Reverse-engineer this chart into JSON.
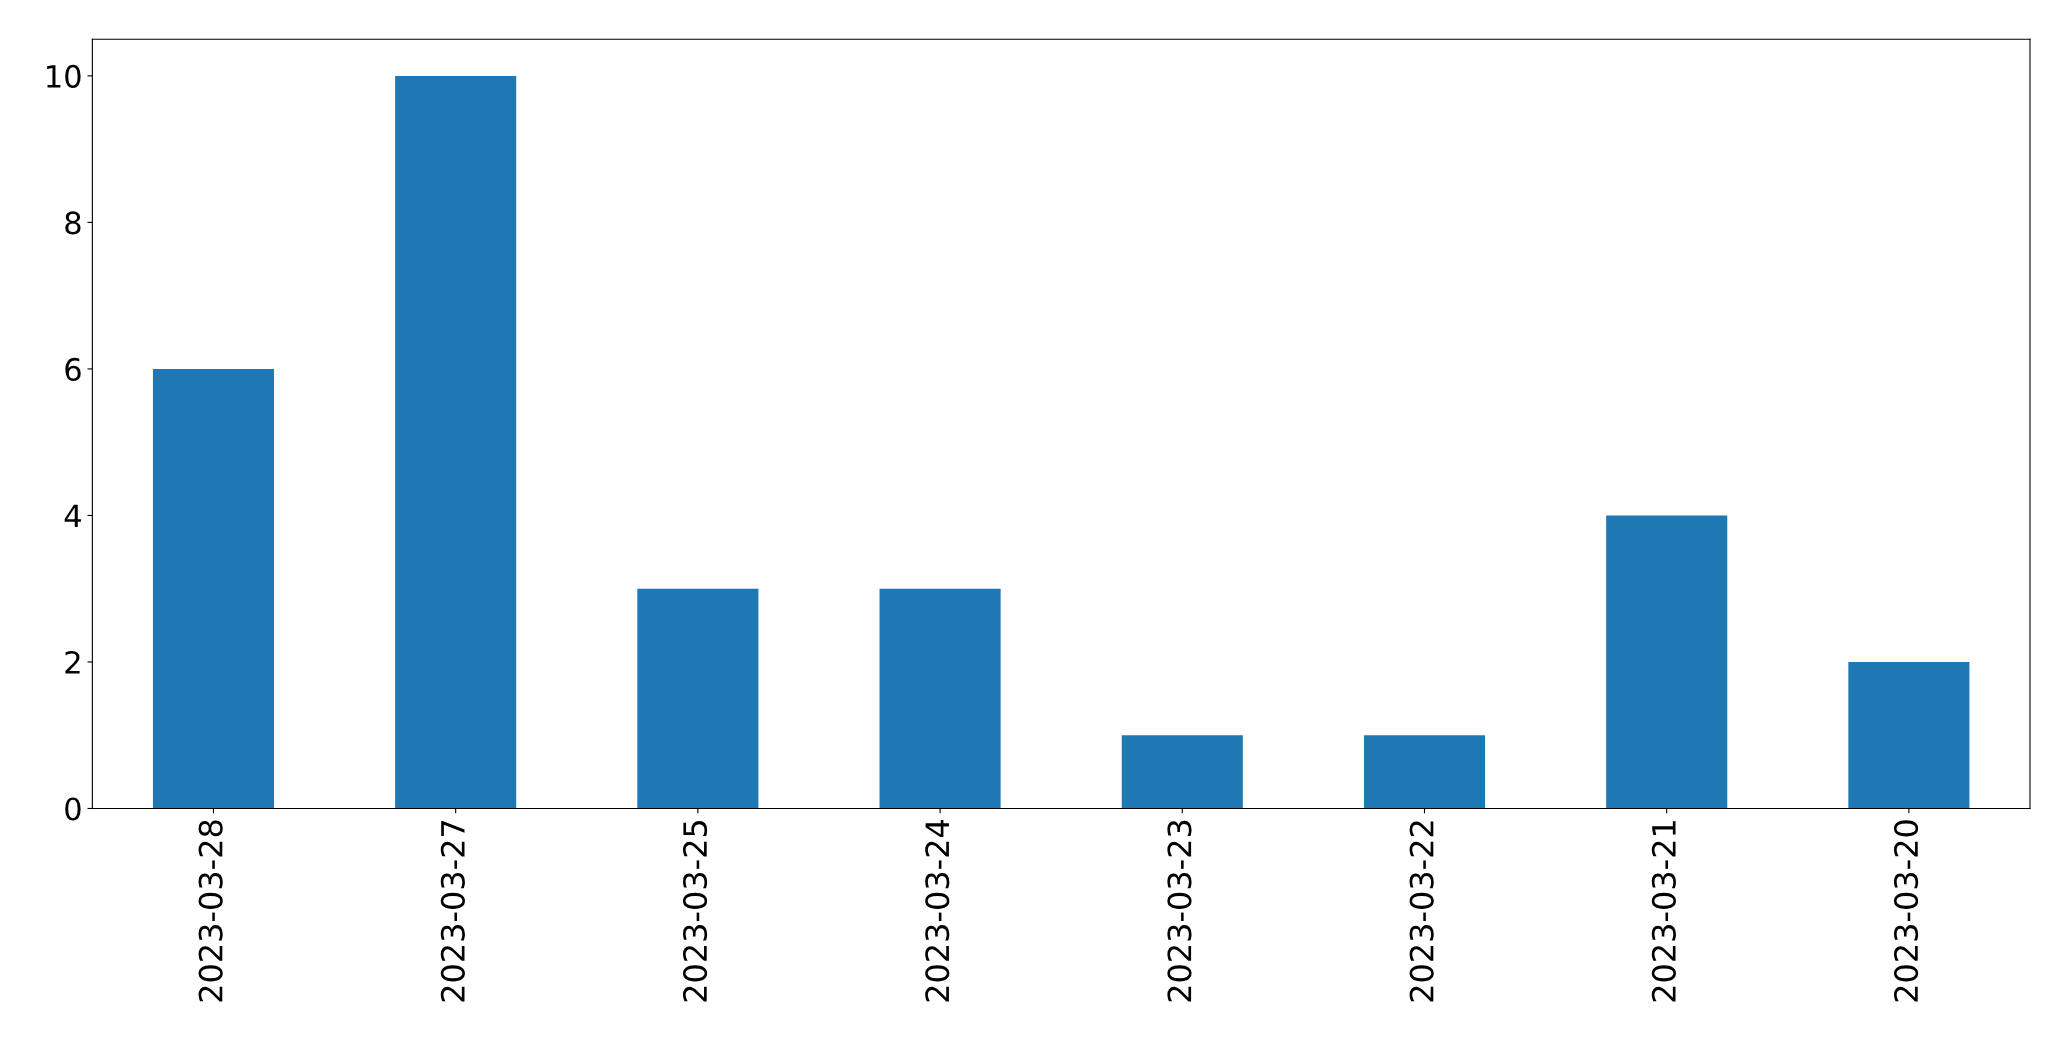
{
  "chart_data": {
    "type": "bar",
    "categories": [
      "2023-03-28",
      "2023-03-27",
      "2023-03-25",
      "2023-03-24",
      "2023-03-23",
      "2023-03-22",
      "2023-03-21",
      "2023-03-20"
    ],
    "values": [
      6,
      10,
      3,
      3,
      1,
      1,
      4,
      2
    ],
    "color": "#1f77b4",
    "ylim": [
      0,
      10.5
    ],
    "yticks": [
      0,
      2,
      4,
      6,
      8,
      10
    ],
    "grid": false
  }
}
